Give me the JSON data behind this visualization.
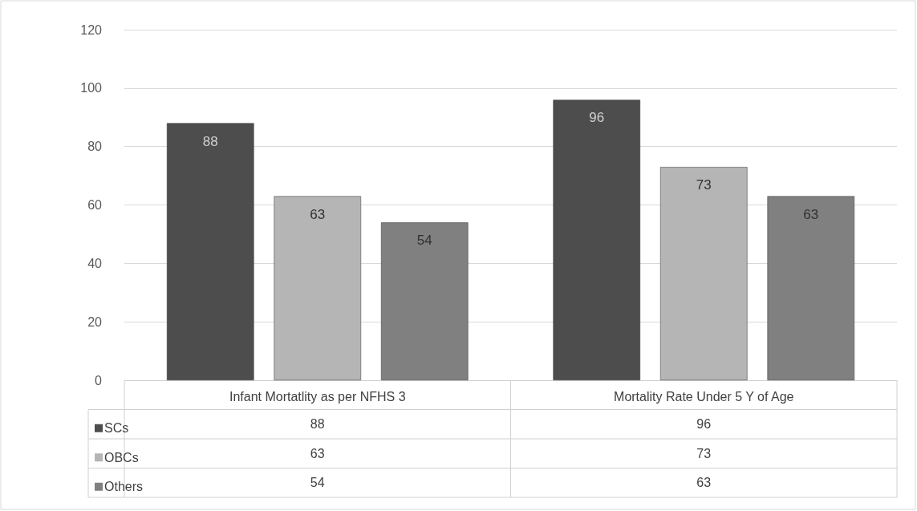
{
  "chart_data": {
    "type": "bar",
    "categories": [
      "Infant Mortatlity as per NFHS 3",
      "Mortality Rate Under 5 Y of Age"
    ],
    "series": [
      {
        "name": "SCs",
        "color": "#4d4d4d",
        "values": [
          88,
          96
        ],
        "value_labels": [
          "88",
          "96"
        ]
      },
      {
        "name": "OBCs",
        "color": "#b5b5b5",
        "values": [
          63,
          73
        ],
        "value_labels": [
          "63",
          "73"
        ]
      },
      {
        "name": "Others",
        "color": "#808080",
        "values": [
          54,
          63
        ],
        "value_labels": [
          "54",
          "63"
        ]
      }
    ],
    "ylim": [
      0,
      120
    ],
    "yticks": [
      0,
      20,
      40,
      60,
      80,
      100,
      120
    ],
    "annotations": [
      "88",
      "96",
      "63",
      "73",
      "54",
      "63"
    ],
    "grid": "y",
    "legend": "bottom left"
  }
}
